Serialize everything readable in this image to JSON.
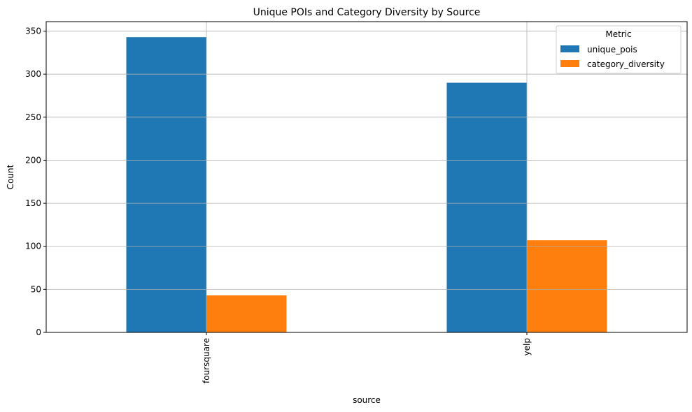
{
  "chart_data": {
    "type": "bar",
    "title": "Unique POIs and Category Diversity by Source",
    "xlabel": "source",
    "ylabel": "Count",
    "categories": [
      "foursquare",
      "yelp"
    ],
    "series": [
      {
        "name": "unique_pois",
        "values": [
          343,
          290
        ],
        "color": "#1f77b4"
      },
      {
        "name": "category_diversity",
        "values": [
          43,
          107
        ],
        "color": "#ff7f0e"
      }
    ],
    "ylim": [
      0,
      361
    ],
    "yticks": [
      0,
      50,
      100,
      150,
      200,
      250,
      300,
      350
    ],
    "grid": true,
    "legend": {
      "title": "Metric",
      "placement": "top-right"
    }
  }
}
